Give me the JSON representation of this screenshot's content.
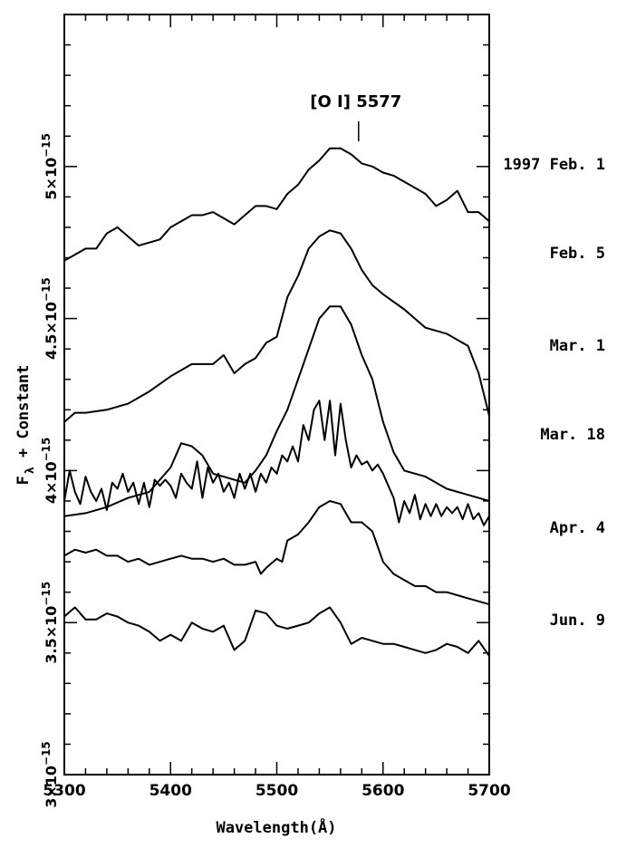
{
  "chart_data": {
    "type": "line",
    "xlabel": "Wavelength(Å)",
    "ylabel": "F",
    "ylabel_sub": "λ",
    "ylabel_suffix": " + Constant",
    "xlim": [
      5300,
      5700
    ],
    "ylim": [
      3e-15,
      5.5e-15
    ],
    "x_ticks": [
      5300,
      5400,
      5500,
      5600,
      5700
    ],
    "x_tick_labels": [
      "5300",
      "5400",
      "5500",
      "5600",
      "5700"
    ],
    "y_ticks": [
      3e-15,
      3.5e-15,
      4e-15,
      4.5e-15,
      5e-15
    ],
    "y_tick_labels": [
      {
        "mant": "3×10",
        "exp": "−15"
      },
      {
        "mant": "3.5×10",
        "exp": "−15"
      },
      {
        "mant": "4×10",
        "exp": "−15"
      },
      {
        "mant": "4.5×10",
        "exp": "−15"
      },
      {
        "mant": "5×10",
        "exp": "−15"
      }
    ],
    "grid": false,
    "annotation": {
      "text": "[O I] 5577",
      "x": 5577
    },
    "series": [
      {
        "name": "1997 Feb. 1",
        "x": [
          5300,
          5310,
          5320,
          5330,
          5340,
          5350,
          5360,
          5370,
          5380,
          5390,
          5400,
          5410,
          5420,
          5430,
          5440,
          5450,
          5460,
          5470,
          5480,
          5490,
          5500,
          5510,
          5520,
          5530,
          5540,
          5550,
          5560,
          5570,
          5580,
          5590,
          5600,
          5610,
          5620,
          5630,
          5640,
          5650,
          5660,
          5670,
          5680,
          5690,
          5700
        ],
        "y": [
          4.69e-15,
          4.71e-15,
          4.73e-15,
          4.73e-15,
          4.78e-15,
          4.8e-15,
          4.77e-15,
          4.74e-15,
          4.75e-15,
          4.76e-15,
          4.8e-15,
          4.82e-15,
          4.84e-15,
          4.84e-15,
          4.85e-15,
          4.83e-15,
          4.81e-15,
          4.84e-15,
          4.87e-15,
          4.87e-15,
          4.86e-15,
          4.91e-15,
          4.94e-15,
          4.99e-15,
          5.02e-15,
          5.06e-15,
          5.06e-15,
          5.04e-15,
          5.01e-15,
          5e-15,
          4.98e-15,
          4.97e-15,
          4.95e-15,
          4.93e-15,
          4.91e-15,
          4.87e-15,
          4.89e-15,
          4.92e-15,
          4.85e-15,
          4.85e-15,
          4.82e-15
        ]
      },
      {
        "name": "Feb. 5",
        "x": [
          5300,
          5310,
          5320,
          5340,
          5360,
          5380,
          5400,
          5420,
          5440,
          5450,
          5460,
          5470,
          5480,
          5490,
          5500,
          5510,
          5520,
          5530,
          5540,
          5550,
          5560,
          5570,
          5580,
          5590,
          5600,
          5620,
          5640,
          5660,
          5680,
          5690,
          5700
        ],
        "y": [
          4.16e-15,
          4.19e-15,
          4.19e-15,
          4.2e-15,
          4.22e-15,
          4.26e-15,
          4.31e-15,
          4.35e-15,
          4.35e-15,
          4.38e-15,
          4.32e-15,
          4.35e-15,
          4.37e-15,
          4.42e-15,
          4.44e-15,
          4.57e-15,
          4.64e-15,
          4.73e-15,
          4.77e-15,
          4.79e-15,
          4.78e-15,
          4.73e-15,
          4.66e-15,
          4.61e-15,
          4.58e-15,
          4.53e-15,
          4.47e-15,
          4.45e-15,
          4.41e-15,
          4.32e-15,
          4.18e-15
        ]
      },
      {
        "name": "Mar. 1",
        "x": [
          5300,
          5320,
          5340,
          5360,
          5380,
          5400,
          5410,
          5420,
          5430,
          5440,
          5450,
          5460,
          5470,
          5480,
          5490,
          5500,
          5510,
          5520,
          5530,
          5540,
          5550,
          5560,
          5570,
          5580,
          5590,
          5600,
          5610,
          5620,
          5640,
          5660,
          5680,
          5690,
          5700
        ],
        "y": [
          3.85e-15,
          3.86e-15,
          3.88e-15,
          3.91e-15,
          3.93e-15,
          4.01e-15,
          4.09e-15,
          4.08e-15,
          4.05e-15,
          3.99e-15,
          3.98e-15,
          3.97e-15,
          3.96e-15,
          4e-15,
          4.05e-15,
          4.13e-15,
          4.2e-15,
          4.3e-15,
          4.4e-15,
          4.5e-15,
          4.54e-15,
          4.54e-15,
          4.48e-15,
          4.38e-15,
          4.3e-15,
          4.16e-15,
          4.06e-15,
          4e-15,
          3.98e-15,
          3.94e-15,
          3.92e-15,
          3.91e-15,
          3.9e-15
        ]
      },
      {
        "name": "Mar. 18",
        "x": [
          5300,
          5305,
          5310,
          5315,
          5320,
          5325,
          5330,
          5335,
          5340,
          5345,
          5350,
          5355,
          5360,
          5365,
          5370,
          5375,
          5380,
          5385,
          5390,
          5395,
          5400,
          5405,
          5410,
          5415,
          5420,
          5425,
          5430,
          5435,
          5440,
          5445,
          5450,
          5455,
          5460,
          5465,
          5470,
          5475,
          5480,
          5485,
          5490,
          5495,
          5500,
          5505,
          5510,
          5515,
          5520,
          5525,
          5530,
          5535,
          5540,
          5545,
          5550,
          5555,
          5560,
          5565,
          5570,
          5575,
          5580,
          5585,
          5590,
          5595,
          5600,
          5605,
          5610,
          5615,
          5620,
          5625,
          5630,
          5635,
          5640,
          5645,
          5650,
          5655,
          5660,
          5665,
          5670,
          5675,
          5680,
          5685,
          5690,
          5695,
          5700
        ],
        "y": [
          3.9e-15,
          4e-15,
          3.93e-15,
          3.89e-15,
          3.98e-15,
          3.93e-15,
          3.9e-15,
          3.94e-15,
          3.87e-15,
          3.96e-15,
          3.94e-15,
          3.99e-15,
          3.93e-15,
          3.96e-15,
          3.89e-15,
          3.96e-15,
          3.88e-15,
          3.97e-15,
          3.95e-15,
          3.97e-15,
          3.95e-15,
          3.91e-15,
          3.99e-15,
          3.96e-15,
          3.94e-15,
          4.03e-15,
          3.91e-15,
          4.01e-15,
          3.96e-15,
          3.99e-15,
          3.93e-15,
          3.96e-15,
          3.91e-15,
          3.99e-15,
          3.94e-15,
          3.99e-15,
          3.93e-15,
          3.99e-15,
          3.96e-15,
          4.01e-15,
          3.99e-15,
          4.05e-15,
          4.03e-15,
          4.08e-15,
          4.03e-15,
          4.15e-15,
          4.1e-15,
          4.2e-15,
          4.23e-15,
          4.1e-15,
          4.23e-15,
          4.05e-15,
          4.22e-15,
          4.1e-15,
          4.01e-15,
          4.05e-15,
          4.02e-15,
          4.03e-15,
          4e-15,
          4.02e-15,
          3.99e-15,
          3.95e-15,
          3.91e-15,
          3.83e-15,
          3.9e-15,
          3.86e-15,
          3.92e-15,
          3.84e-15,
          3.89e-15,
          3.85e-15,
          3.89e-15,
          3.85e-15,
          3.88e-15,
          3.86e-15,
          3.88e-15,
          3.84e-15,
          3.89e-15,
          3.84e-15,
          3.86e-15,
          3.82e-15,
          3.85e-15
        ]
      },
      {
        "name": "Apr. 4",
        "x": [
          5300,
          5310,
          5320,
          5330,
          5340,
          5350,
          5360,
          5370,
          5380,
          5390,
          5400,
          5410,
          5420,
          5430,
          5440,
          5450,
          5460,
          5470,
          5480,
          5485,
          5490,
          5500,
          5505,
          5510,
          5520,
          5530,
          5540,
          5550,
          5560,
          5570,
          5580,
          5590,
          5600,
          5610,
          5620,
          5630,
          5640,
          5650,
          5660,
          5670,
          5680,
          5690,
          5700
        ],
        "y": [
          3.72e-15,
          3.74e-15,
          3.73e-15,
          3.74e-15,
          3.72e-15,
          3.72e-15,
          3.7e-15,
          3.71e-15,
          3.69e-15,
          3.7e-15,
          3.71e-15,
          3.72e-15,
          3.71e-15,
          3.71e-15,
          3.7e-15,
          3.71e-15,
          3.69e-15,
          3.69e-15,
          3.7e-15,
          3.66e-15,
          3.68e-15,
          3.71e-15,
          3.7e-15,
          3.77e-15,
          3.79e-15,
          3.83e-15,
          3.88e-15,
          3.9e-15,
          3.89e-15,
          3.83e-15,
          3.83e-15,
          3.8e-15,
          3.7e-15,
          3.66e-15,
          3.64e-15,
          3.62e-15,
          3.62e-15,
          3.6e-15,
          3.6e-15,
          3.59e-15,
          3.58e-15,
          3.57e-15,
          3.56e-15
        ]
      },
      {
        "name": "Jun. 9",
        "x": [
          5300,
          5310,
          5320,
          5330,
          5340,
          5350,
          5360,
          5370,
          5380,
          5390,
          5400,
          5410,
          5420,
          5430,
          5440,
          5450,
          5460,
          5470,
          5480,
          5490,
          5500,
          5510,
          5520,
          5530,
          5540,
          5550,
          5560,
          5570,
          5580,
          5590,
          5600,
          5610,
          5620,
          5630,
          5640,
          5650,
          5660,
          5670,
          5680,
          5690,
          5700
        ],
        "y": [
          3.52e-15,
          3.55e-15,
          3.51e-15,
          3.51e-15,
          3.53e-15,
          3.52e-15,
          3.5e-15,
          3.49e-15,
          3.47e-15,
          3.44e-15,
          3.46e-15,
          3.44e-15,
          3.5e-15,
          3.48e-15,
          3.47e-15,
          3.49e-15,
          3.41e-15,
          3.44e-15,
          3.54e-15,
          3.53e-15,
          3.49e-15,
          3.48e-15,
          3.49e-15,
          3.5e-15,
          3.53e-15,
          3.55e-15,
          3.5e-15,
          3.43e-15,
          3.45e-15,
          3.44e-15,
          3.43e-15,
          3.43e-15,
          3.42e-15,
          3.41e-15,
          3.4e-15,
          3.41e-15,
          3.43e-15,
          3.42e-15,
          3.4e-15,
          3.44e-15,
          3.39e-15
        ]
      }
    ]
  }
}
